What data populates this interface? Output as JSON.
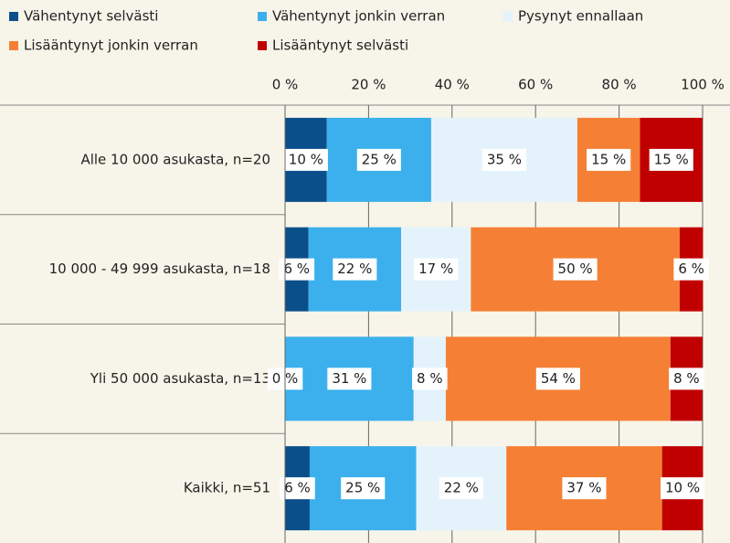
{
  "chart_data": {
    "type": "stacked-bar-horizontal",
    "categories": [
      "Alle 10 000 asukasta, n=20",
      "10 000 - 49 999 asukasta, n=18",
      "Yli 50 000 asukasta, n=13",
      "Kaikki, n=51"
    ],
    "series": [
      {
        "name": "Vähentynyt selvästi",
        "color": "#0b4f8a",
        "values": [
          10,
          5.6,
          0,
          5.9
        ],
        "value_labels": [
          "10 %",
          "6 %",
          "0 %",
          "6 %"
        ]
      },
      {
        "name": "Vähentynyt jonkin verran",
        "color": "#3bb0ec",
        "values": [
          25,
          22.2,
          30.8,
          25.5
        ],
        "value_labels": [
          "25 %",
          "22 %",
          "31 %",
          "25 %"
        ]
      },
      {
        "name": "Pysynyt ennallaan",
        "color": "#e4f3fb",
        "values": [
          35,
          16.7,
          7.7,
          21.6
        ],
        "value_labels": [
          "35 %",
          "17 %",
          "8 %",
          "22 %"
        ]
      },
      {
        "name": "Lisääntynyt jonkin verran",
        "color": "#f58035",
        "values": [
          15,
          50,
          53.8,
          37.3
        ],
        "value_labels": [
          "15 %",
          "50 %",
          "54 %",
          "37 %"
        ]
      },
      {
        "name": "Lisääntynyt selvästi",
        "color": "#c00000",
        "values": [
          15,
          5.6,
          7.7,
          9.8
        ],
        "value_labels": [
          "15 %",
          "6 %",
          "8 %",
          "10 %"
        ]
      }
    ],
    "xlim": [
      0,
      100
    ],
    "xticks": [
      {
        "value": 0,
        "label": "0 %"
      },
      {
        "value": 20,
        "label": "20 %"
      },
      {
        "value": 40,
        "label": "40 %"
      },
      {
        "value": 60,
        "label": "60 %"
      },
      {
        "value": 80,
        "label": "80 %"
      },
      {
        "value": 100,
        "label": "100 %"
      }
    ],
    "grid": true
  }
}
